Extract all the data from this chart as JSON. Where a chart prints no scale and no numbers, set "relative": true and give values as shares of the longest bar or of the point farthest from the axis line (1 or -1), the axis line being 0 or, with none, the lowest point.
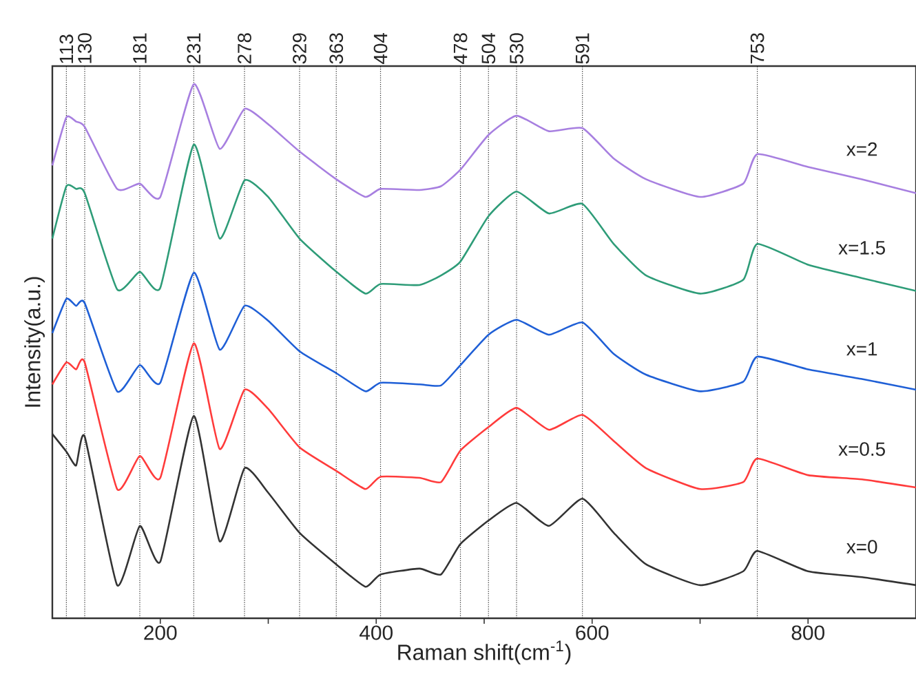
{
  "chart_data": {
    "type": "line",
    "relative": true,
    "xlabel": "Raman shift(cm$^{-1}$)",
    "ylabel": "Intensity(a.u.)",
    "x": [
      100,
      113,
      122,
      130,
      160,
      181,
      200,
      231,
      255,
      278,
      300,
      329,
      363,
      390,
      404,
      440,
      460,
      478,
      504,
      530,
      560,
      591,
      620,
      650,
      700,
      740,
      753,
      800,
      850,
      900
    ],
    "xlim": [
      100,
      900
    ],
    "xticks": [
      200,
      {
        "value": 300,
        "label": null
      },
      400,
      {
        "value": 500,
        "label": null
      },
      600,
      {
        "value": 700,
        "label": null
      },
      800
    ],
    "series": [
      {
        "name": "x=0",
        "color": "#333333",
        "values": [
          0.345,
          0.312,
          0.286,
          0.34,
          0.062,
          0.173,
          0.106,
          0.379,
          0.144,
          0.281,
          0.235,
          0.16,
          0.101,
          0.059,
          0.082,
          0.093,
          0.082,
          0.139,
          0.183,
          0.216,
          0.173,
          0.224,
          0.16,
          0.101,
          0.062,
          0.088,
          0.126,
          0.088,
          0.077,
          0.062
        ]
      },
      {
        "name": "x=0.5",
        "color": "#ff3b3b",
        "values": [
          0.438,
          0.479,
          0.466,
          0.479,
          0.242,
          0.304,
          0.263,
          0.515,
          0.317,
          0.428,
          0.392,
          0.32,
          0.276,
          0.242,
          0.265,
          0.263,
          0.255,
          0.314,
          0.358,
          0.394,
          0.353,
          0.381,
          0.332,
          0.281,
          0.242,
          0.255,
          0.299,
          0.268,
          0.26,
          0.245
        ]
      },
      {
        "name": "x=1",
        "color": "#1f5fd6",
        "values": [
          0.534,
          0.598,
          0.585,
          0.59,
          0.425,
          0.474,
          0.441,
          0.647,
          0.503,
          0.585,
          0.557,
          0.5,
          0.459,
          0.425,
          0.441,
          0.438,
          0.436,
          0.474,
          0.531,
          0.559,
          0.531,
          0.554,
          0.495,
          0.456,
          0.425,
          0.443,
          0.49,
          0.466,
          0.448,
          0.428
        ]
      },
      {
        "name": "x=1.5",
        "color": "#2e9c78",
        "values": [
          0.711,
          0.809,
          0.804,
          0.796,
          0.616,
          0.649,
          0.619,
          0.887,
          0.711,
          0.82,
          0.789,
          0.711,
          0.649,
          0.608,
          0.626,
          0.624,
          0.642,
          0.668,
          0.753,
          0.799,
          0.758,
          0.776,
          0.701,
          0.642,
          0.608,
          0.634,
          0.701,
          0.662,
          0.637,
          0.613
        ]
      },
      {
        "name": "x=2",
        "color": "#a77fe0",
        "values": [
          0.848,
          0.938,
          0.93,
          0.92,
          0.804,
          0.814,
          0.789,
          1.0,
          0.879,
          0.954,
          0.925,
          0.874,
          0.822,
          0.789,
          0.804,
          0.802,
          0.809,
          0.84,
          0.905,
          0.941,
          0.912,
          0.918,
          0.861,
          0.822,
          0.789,
          0.814,
          0.869,
          0.845,
          0.822,
          0.796
        ]
      }
    ],
    "ref_lines": [
      {
        "axis": "x",
        "value": 113,
        "label": "113",
        "line_style": "dotted",
        "color": "#222222"
      },
      {
        "axis": "x",
        "value": 130,
        "label": "130",
        "line_style": "dotted",
        "color": "#222222"
      },
      {
        "axis": "x",
        "value": 181,
        "label": "181",
        "line_style": "dotted",
        "color": "#222222"
      },
      {
        "axis": "x",
        "value": 231,
        "label": "231",
        "line_style": "dotted",
        "color": "#222222"
      },
      {
        "axis": "x",
        "value": 278,
        "label": "278",
        "line_style": "dotted",
        "color": "#222222"
      },
      {
        "axis": "x",
        "value": 329,
        "label": "329",
        "line_style": "dotted",
        "color": "#222222"
      },
      {
        "axis": "x",
        "value": 363,
        "label": "363",
        "line_style": "dotted",
        "color": "#222222"
      },
      {
        "axis": "x",
        "value": 404,
        "label": "404",
        "line_style": "dotted",
        "color": "#222222"
      },
      {
        "axis": "x",
        "value": 478,
        "label": "478",
        "line_style": "dotted",
        "color": "#222222"
      },
      {
        "axis": "x",
        "value": 504,
        "label": "504",
        "line_style": "dotted",
        "color": "#222222"
      },
      {
        "axis": "x",
        "value": 530,
        "label": "530",
        "line_style": "dotted",
        "color": "#222222"
      },
      {
        "axis": "x",
        "value": 591,
        "label": "591",
        "line_style": "dotted",
        "color": "#222222"
      },
      {
        "axis": "x",
        "value": 753,
        "label": "753",
        "line_style": "dotted",
        "color": "#222222"
      }
    ]
  }
}
